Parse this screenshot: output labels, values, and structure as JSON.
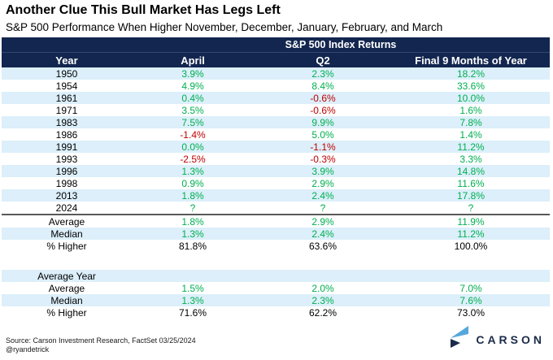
{
  "header": {
    "title": "Another Clue This Bull Market Has Legs Left",
    "subtitle": "S&P 500 Performance When Higher November, December, January, February, and March"
  },
  "chart_data": {
    "type": "table",
    "band_title": "S&P 500 Index Returns",
    "columns": [
      "Year",
      "April",
      "Q2",
      "Final 9 Months of Year"
    ],
    "sections": [
      {
        "name": "years",
        "stripe_first_row": true,
        "rows": [
          [
            "1950",
            "3.9%",
            "2.3%",
            "18.2%"
          ],
          [
            "1954",
            "4.9%",
            "8.4%",
            "33.6%"
          ],
          [
            "1961",
            "0.4%",
            "-0.6%",
            "10.0%"
          ],
          [
            "1971",
            "3.5%",
            "-0.6%",
            "1.6%"
          ],
          [
            "1983",
            "7.5%",
            "9.9%",
            "7.8%"
          ],
          [
            "1986",
            "-1.4%",
            "5.0%",
            "1.4%"
          ],
          [
            "1991",
            "0.0%",
            "-1.1%",
            "11.2%"
          ],
          [
            "1993",
            "-2.5%",
            "-0.3%",
            "3.3%"
          ],
          [
            "1996",
            "1.3%",
            "3.9%",
            "14.8%"
          ],
          [
            "1998",
            "0.9%",
            "2.9%",
            "11.6%"
          ],
          [
            "2013",
            "1.8%",
            "2.4%",
            "17.8%"
          ],
          [
            "2024",
            "?",
            "?",
            "?"
          ]
        ]
      },
      {
        "name": "summary",
        "stripe_first_row": false,
        "divider_top": true,
        "rows": [
          [
            "Average",
            "1.8%",
            "2.9%",
            "11.9%"
          ],
          [
            "Median",
            "1.3%",
            "2.4%",
            "11.2%"
          ],
          [
            "% Higher",
            "81.8%",
            "63.6%",
            "100.0%"
          ]
        ]
      },
      {
        "name": "average_year",
        "stripe_first_row": true,
        "gap_before": true,
        "rows": [
          [
            "Average Year",
            "",
            "",
            ""
          ],
          [
            "Average",
            "1.5%",
            "2.0%",
            "7.0%"
          ],
          [
            "Median",
            "1.3%",
            "2.3%",
            "7.6%"
          ],
          [
            "% Higher",
            "71.6%",
            "62.2%",
            "73.0%"
          ]
        ]
      }
    ],
    "colors": {
      "header_navy": "#13264F",
      "stripe_blue": "#DCEFFA",
      "positive_green": "#00AF50",
      "negative_red": "#C00000"
    }
  },
  "footer": {
    "source": "Source: Carson Investment Research, FactSet 03/25/2024",
    "handle": "@ryandetrick",
    "logo_text": "CARSON"
  }
}
